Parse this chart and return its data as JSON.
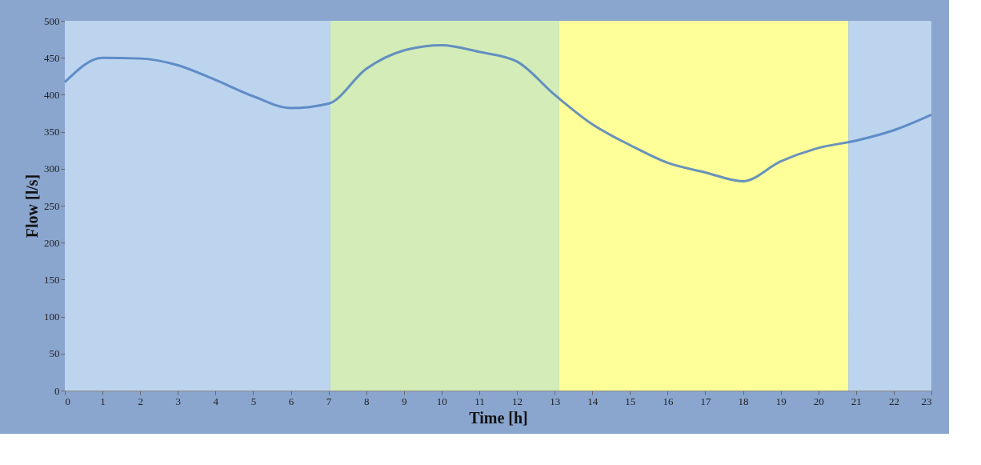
{
  "chart_data": {
    "type": "line",
    "xlabel": "Time [h]",
    "ylabel": "Flow [l/s]",
    "x": [
      0,
      1,
      2,
      3,
      4,
      5,
      6,
      7,
      8,
      9,
      10,
      11,
      12,
      13,
      14,
      15,
      16,
      17,
      18,
      19,
      20,
      21,
      22,
      23
    ],
    "series": [
      {
        "color": "#4f7fbf",
        "values": [
          417,
          450,
          449,
          440,
          420,
          398,
          382,
          388,
          435,
          460,
          467,
          458,
          445,
          400,
          360,
          332,
          308,
          295,
          283,
          310,
          328,
          338,
          352,
          373
        ]
      }
    ],
    "xlim": [
      0,
      23
    ],
    "xticks": [
      0,
      1,
      2,
      3,
      4,
      5,
      6,
      7,
      8,
      9,
      10,
      11,
      12,
      13,
      14,
      15,
      16,
      17,
      18,
      19,
      20,
      21,
      22,
      23
    ],
    "ylim": [
      0,
      500
    ],
    "yticks": [
      0,
      50,
      100,
      150,
      200,
      250,
      300,
      350,
      400,
      450,
      500
    ],
    "bands": [
      {
        "axis": "x",
        "from": 0,
        "to": 7.05,
        "color": "#bcd4ee"
      },
      {
        "axis": "x",
        "from": 7.05,
        "to": 13.12,
        "color": "#d4ecb8"
      },
      {
        "axis": "x",
        "from": 13.12,
        "to": 20.8,
        "color": "#ffff99"
      },
      {
        "axis": "x",
        "from": 20.8,
        "to": 23,
        "color": "#bcd4ee"
      }
    ],
    "grid": "y",
    "marker": "none",
    "line_style": "solid"
  }
}
